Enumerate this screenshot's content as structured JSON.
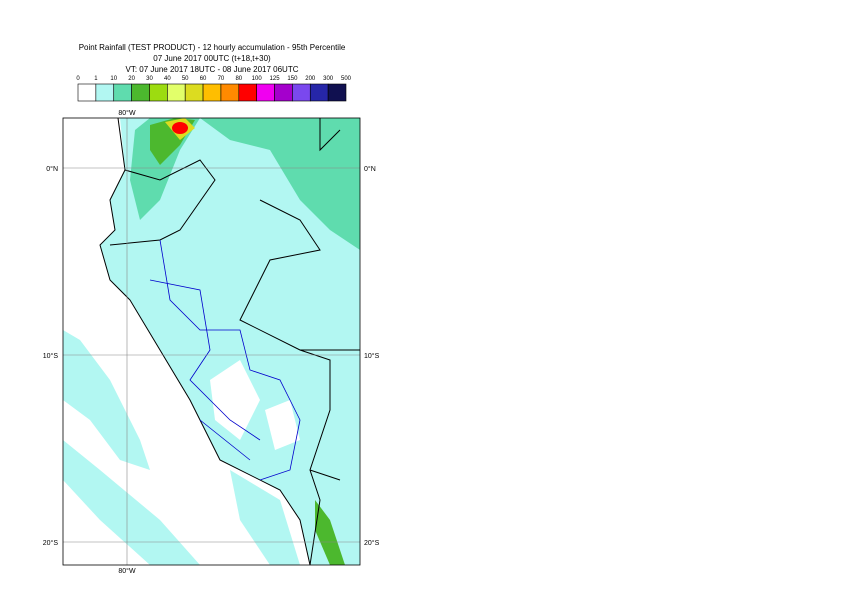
{
  "header": {
    "title_lines": [
      "Point Rainfall (TEST PRODUCT) - 12 hourly accumulation - 95th Percentile",
      "07 June 2017 00UTC (t+18,t+30)",
      "VT: 07 June 2017 18UTC - 08 June 2017 06UTC"
    ]
  },
  "legend": {
    "labels": [
      "0",
      "1",
      "10",
      "20",
      "30",
      "40",
      "50",
      "60",
      "70",
      "80",
      "100",
      "125",
      "150",
      "200",
      "300",
      "500"
    ],
    "colors": [
      "#ffffff",
      "#b2f7f2",
      "#5fdcae",
      "#4cb82e",
      "#9ddc10",
      "#e2ff6a",
      "#dcdc20",
      "#ffbe00",
      "#ff8a00",
      "#ff0000",
      "#f000f0",
      "#a400cc",
      "#7a48ee",
      "#2626a8",
      "#101050"
    ]
  },
  "map": {
    "lon_labels": {
      "top": "80°W",
      "bottom": "80°W"
    },
    "lat_labels": [
      {
        "left": "0°N",
        "right": "0°N"
      },
      {
        "left": "10°S",
        "right": "10°S"
      },
      {
        "left": "20°S",
        "right": "20°S"
      }
    ]
  }
}
